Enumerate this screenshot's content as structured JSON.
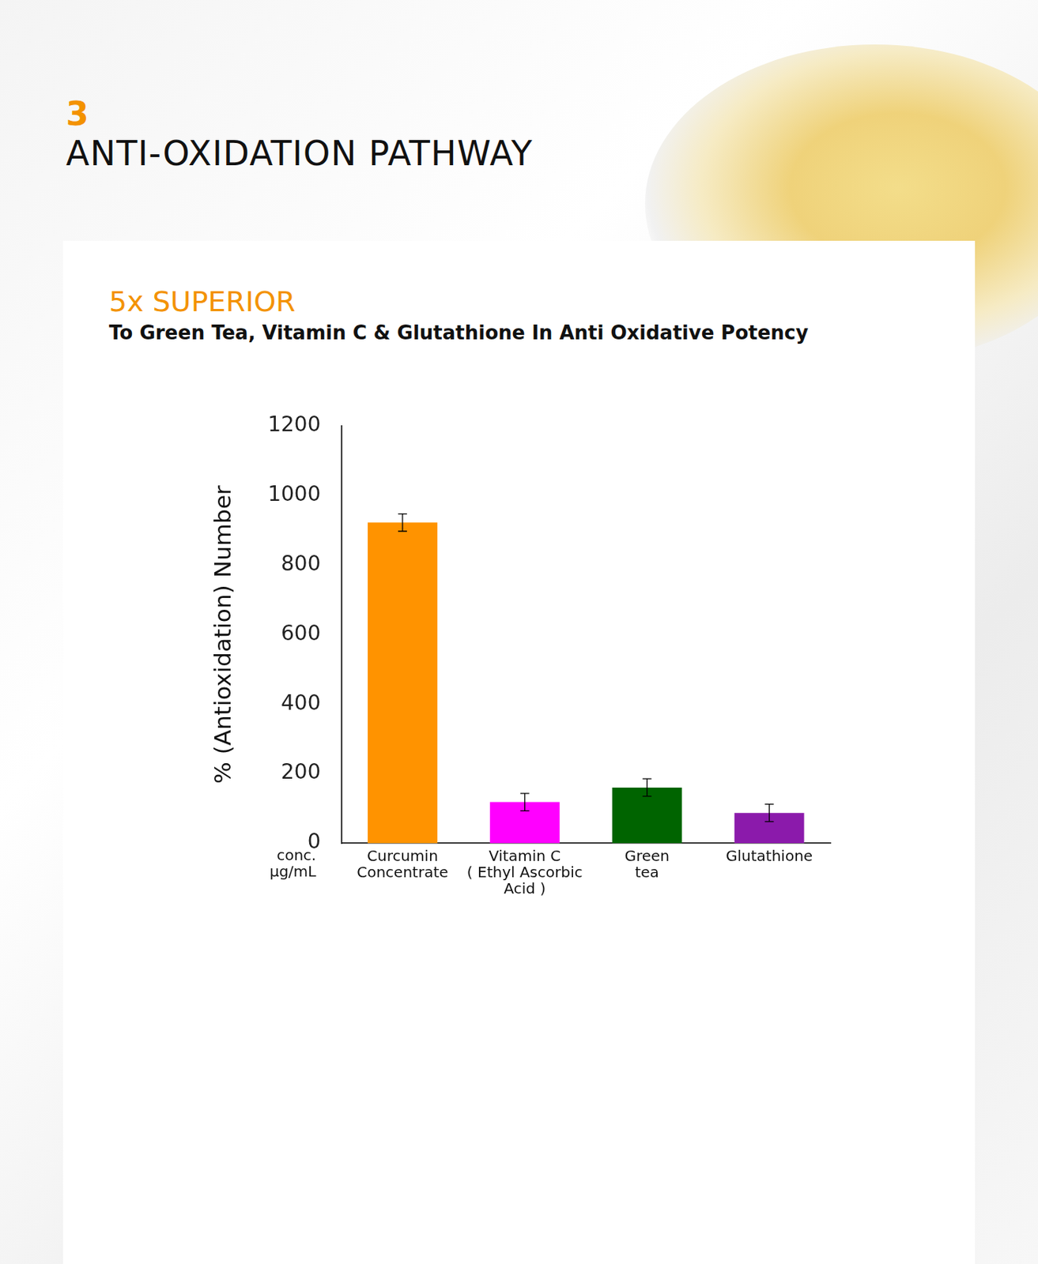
{
  "header": {
    "number": "3",
    "title": "ANTI-OXIDATION PATHWAY"
  },
  "chart_data": {
    "type": "bar",
    "title": "5x SUPERIOR",
    "subtitle": "To Green Tea, Vitamin C & Glutathione In Anti Oxidative Potency",
    "ylabel": "% (Antioxidation) Number",
    "xlabel": "conc. µg/mL",
    "categories": [
      [
        "Curcumin",
        "Concentrate"
      ],
      [
        "Vitamin C",
        "( Ethyl Ascorbic",
        "Acid )"
      ],
      [
        "Green",
        "tea"
      ],
      [
        "Glutathione"
      ]
    ],
    "values": [
      922,
      118,
      160,
      87
    ],
    "errors": [
      25,
      25,
      25,
      25
    ],
    "colors": [
      "#ff9300",
      "#ff00ff",
      "#006400",
      "#8b1aab"
    ],
    "ylim": [
      0,
      1200
    ],
    "yticks": [
      0,
      200,
      400,
      600,
      800,
      1000,
      1200
    ],
    "grid": false
  }
}
